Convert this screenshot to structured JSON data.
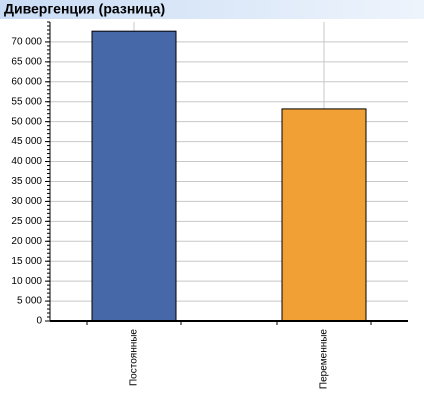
{
  "chart_data": {
    "type": "bar",
    "title": "Дивергенция (разница)",
    "categories": [
      "Постоянные",
      "Переменные"
    ],
    "values": [
      72700,
      53200
    ],
    "colors": [
      "#4667a8",
      "#f1a035"
    ],
    "ylim": [
      0,
      75000
    ],
    "yticks": [
      0,
      {
        "value": 5000,
        "label": "5 000"
      },
      {
        "value": 10000,
        "label": "10 000"
      },
      {
        "value": 15000,
        "label": "15 000"
      },
      {
        "value": 20000,
        "label": "20 000"
      },
      {
        "value": 25000,
        "label": "25 000"
      },
      {
        "value": 30000,
        "label": "30 000"
      },
      {
        "value": 35000,
        "label": "35 000"
      },
      {
        "value": 40000,
        "label": "40 000"
      },
      {
        "value": 45000,
        "label": "45 000"
      },
      {
        "value": 50000,
        "label": "50 000"
      },
      {
        "value": 55000,
        "label": "55 000"
      },
      {
        "value": 60000,
        "label": "60 000"
      },
      {
        "value": 65000,
        "label": "65 000"
      },
      {
        "value": 70000,
        "label": "70 000"
      }
    ],
    "grid": true
  }
}
